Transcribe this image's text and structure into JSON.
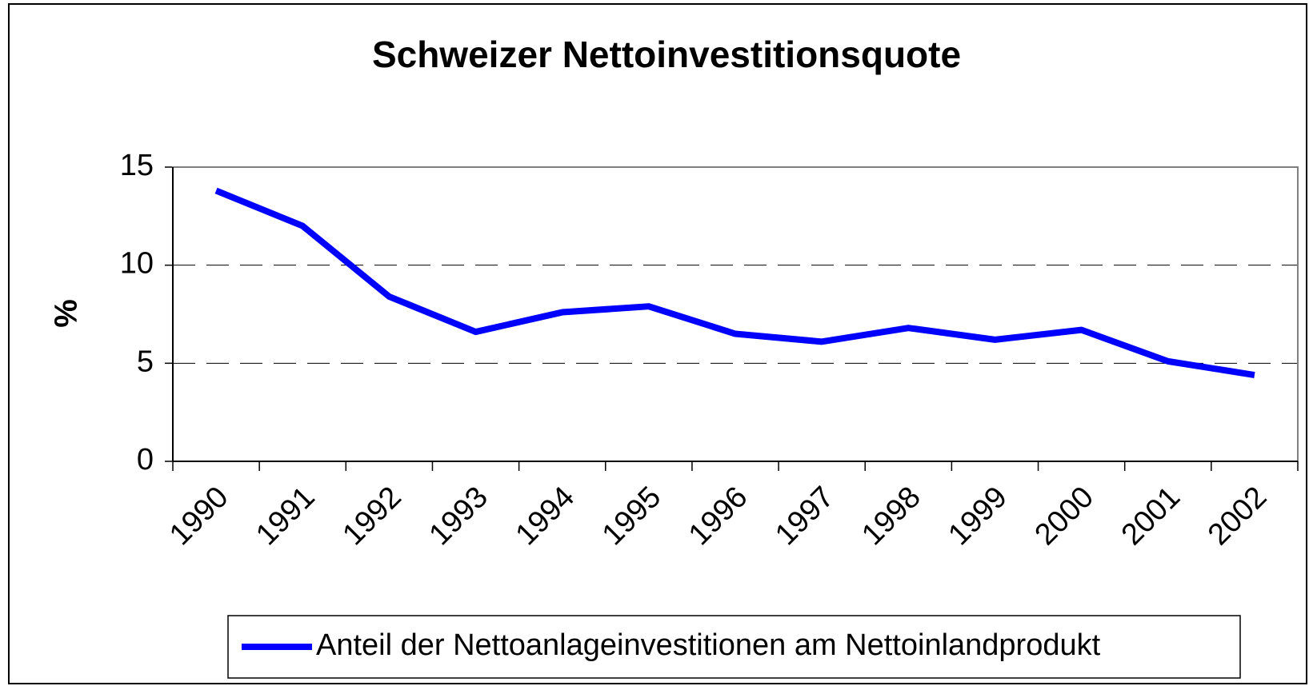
{
  "chart_data": {
    "type": "line",
    "title": "Schweizer Nettoinvestitionsquote",
    "y_label": "%",
    "categories": [
      "1990",
      "1991",
      "1992",
      "1993",
      "1994",
      "1995",
      "1996",
      "1997",
      "1998",
      "1999",
      "2000",
      "2001",
      "2002"
    ],
    "series": [
      {
        "name": "Anteil der Nettoanlageinvestitionen am Nettoinlandprodukt",
        "color": "#0000ff",
        "values": [
          13.8,
          12.0,
          8.4,
          6.6,
          7.6,
          7.9,
          6.5,
          6.1,
          6.8,
          6.2,
          6.7,
          5.1,
          4.4
        ]
      }
    ],
    "ylim": [
      0,
      15
    ],
    "yticks": [
      0,
      5,
      10,
      15
    ],
    "grid": true,
    "legend": "bottom"
  }
}
